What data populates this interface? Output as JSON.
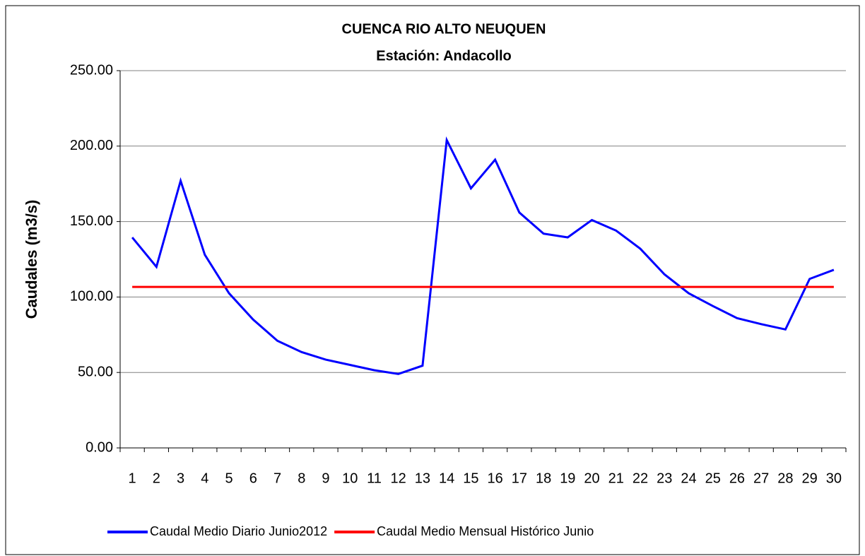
{
  "chart_data": {
    "type": "line",
    "title": "CUENCA RIO ALTO NEUQUEN",
    "subtitle": "Estación: Andacollo",
    "y_label": "Caudales (m3/s)",
    "categories": [
      "1",
      "2",
      "3",
      "4",
      "5",
      "6",
      "7",
      "8",
      "9",
      "10",
      "11",
      "12",
      "13",
      "14",
      "15",
      "16",
      "17",
      "18",
      "19",
      "20",
      "21",
      "22",
      "23",
      "24",
      "25",
      "26",
      "27",
      "28",
      "29",
      "30"
    ],
    "series": [
      {
        "name": "Caudal Medio Diario Junio2012",
        "color": "#0000ff",
        "values": [
          139.5,
          120,
          177,
          128,
          102.5,
          85,
          71,
          63.5,
          58.5,
          55,
          51.5,
          49,
          54.5,
          204,
          172,
          191,
          156,
          142,
          139.5,
          151,
          144,
          132,
          115,
          102.5,
          94,
          86,
          82,
          78.5,
          112,
          118
        ]
      },
      {
        "name": "Caudal Medio Mensual Histórico Junio",
        "color": "#ff0000",
        "values": [
          106.7,
          106.7,
          106.7,
          106.7,
          106.7,
          106.7,
          106.7,
          106.7,
          106.7,
          106.7,
          106.7,
          106.7,
          106.7,
          106.7,
          106.7,
          106.7,
          106.7,
          106.7,
          106.7,
          106.7,
          106.7,
          106.7,
          106.7,
          106.7,
          106.7,
          106.7,
          106.7,
          106.7,
          106.7,
          106.7
        ]
      }
    ],
    "ylim": [
      0,
      250
    ],
    "yticks": [
      {
        "value": 0,
        "label": "0.00"
      },
      {
        "value": 50,
        "label": "50.00"
      },
      {
        "value": 100,
        "label": "100.00"
      },
      {
        "value": 150,
        "label": "150.00"
      },
      {
        "value": 200,
        "label": "200.00"
      },
      {
        "value": 250,
        "label": "250.00"
      }
    ],
    "grid": true,
    "legend": "bottom"
  }
}
